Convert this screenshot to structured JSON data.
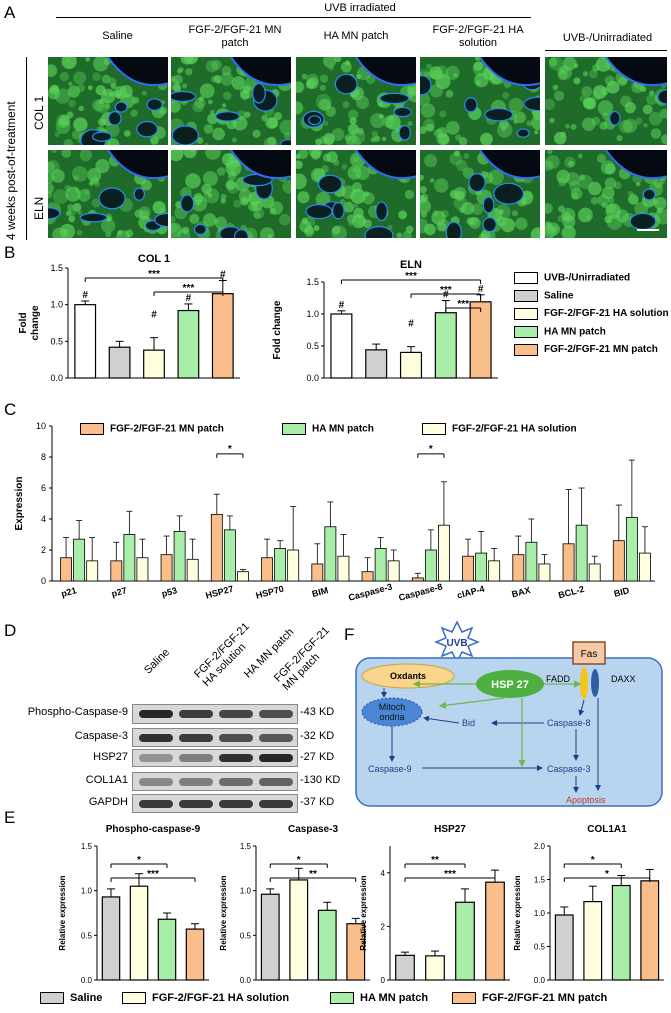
{
  "panels": {
    "A": "A",
    "B": "B",
    "C": "C",
    "D": "D",
    "E": "E",
    "F": "F"
  },
  "colors": {
    "unirradiated": "#ffffff",
    "saline": "#d0d0d0",
    "ha_solution": "#ffffe0",
    "ha_mn": "#a8eea8",
    "fgf_mn": "#f9be8a"
  },
  "panelA": {
    "uvb_irradiated": "UVB irradiated",
    "columns": [
      "Saline",
      "FGF-2/FGF-21 MN patch",
      "HA MN patch",
      "FGF-2/FGF-21 HA solution",
      "UVB-/Unirradiated"
    ],
    "timepoint": "4 weeks post-of-treatment",
    "rows": [
      "COL 1",
      "ELN"
    ]
  },
  "panelB": {
    "legend": [
      "UVB-/Unirradiated",
      "Saline",
      "FGF-2/FGF-21 HA solution",
      "HA MN patch",
      "FGF-2/FGF-21 MN patch"
    ]
  },
  "panelC": {
    "legend": [
      "FGF-2/FGF-21 MN patch",
      "HA MN patch",
      "FGF-2/FGF-21 HA solution"
    ]
  },
  "panelD": {
    "columns": [
      "Saline",
      "FGF-2/FGF-21 HA solution",
      "HA MN patch",
      "FGF-2/FGF-21 MN patch"
    ],
    "proteins": [
      "Phospho-Caspase-9",
      "Caspase-3",
      "HSP27",
      "COL1A1",
      "GAPDH"
    ],
    "sizes": [
      "-43 KD",
      "-32 KD",
      "-27 KD",
      "-130 KD",
      "-37 KD"
    ]
  },
  "panelF": {
    "uvb": "UVB",
    "fas": "Fas",
    "fadd": "FADD",
    "daxx": "DAXX",
    "oxidants": "Oxdants",
    "hsp27": "HSP 27",
    "mito_line1": "Mitoch",
    "mito_line2": "ondria",
    "bid": "Bid",
    "casp8": "Caspase-8",
    "casp9": "Caspase-9",
    "casp3": "Caspase-3",
    "apoptosis": "Apoptosis"
  },
  "panelE": {
    "legend": [
      "Saline",
      "FGF-2/FGF-21 HA solution",
      "HA MN patch",
      "FGF-2/FGF-21 MN patch"
    ]
  },
  "chart_data": [
    {
      "id": "B-col1",
      "type": "bar",
      "title": "COL 1",
      "ylabel": "Fold change",
      "categories": [
        "UVB-/Unirradiated",
        "Saline",
        "FGF-2/FGF-21 HA solution",
        "HA MN patch",
        "FGF-2/FGF-21 MN patch"
      ],
      "values": [
        1.0,
        0.42,
        0.38,
        0.92,
        1.15
      ],
      "errors": [
        0.05,
        0.08,
        0.17,
        0.09,
        0.18
      ],
      "ylim": [
        0,
        1.5
      ],
      "yticks": [
        "0.0",
        "0.5",
        "1.0",
        "1.5"
      ],
      "marks": [
        "#",
        "",
        "",
        "#",
        "#"
      ],
      "sig": [
        {
          "a": 0,
          "b": 4,
          "label": "***"
        },
        {
          "a": 2,
          "b": 4,
          "label": "***"
        }
      ],
      "extra_marks": [
        {
          "at": 2,
          "label": "#"
        }
      ]
    },
    {
      "id": "B-eln",
      "type": "bar",
      "title": "ELN",
      "ylabel": "Fold change",
      "categories": [
        "UVB-/Unirradiated",
        "Saline",
        "FGF-2/FGF-21 HA solution",
        "HA MN patch",
        "FGF-2/FGF-21 MN patch"
      ],
      "values": [
        1.0,
        0.44,
        0.4,
        1.02,
        1.19
      ],
      "errors": [
        0.05,
        0.09,
        0.09,
        0.19,
        0.11
      ],
      "ylim": [
        0,
        1.5
      ],
      "yticks": [
        "0.0",
        "0.5",
        "1.0",
        "1.5"
      ],
      "marks": [
        "#",
        "",
        "",
        "#",
        "#"
      ],
      "sig": [
        {
          "a": 0,
          "b": 4,
          "label": "***"
        },
        {
          "a": 2,
          "b": 4,
          "label": "***"
        },
        {
          "a": 3,
          "b": 4,
          "label": "***"
        }
      ],
      "extra_marks": [
        {
          "at": 2,
          "label": "#"
        }
      ]
    },
    {
      "id": "C",
      "type": "bar",
      "ylabel": "Expression",
      "ylim": [
        0,
        10
      ],
      "yticks": [
        "0",
        "2",
        "4",
        "6",
        "8",
        "10"
      ],
      "categories": [
        "p21",
        "p27",
        "p53",
        "HSP27",
        "HSP70",
        "BIM",
        "Caspase-3",
        "Caspase-8",
        "cIAP-4",
        "BAX",
        "BCL-2",
        "BID"
      ],
      "series": [
        {
          "name": "FGF-2/FGF-21 MN patch",
          "values": [
            1.5,
            1.3,
            1.7,
            4.3,
            1.5,
            1.1,
            0.6,
            0.2,
            1.6,
            1.7,
            2.4,
            2.6
          ],
          "errors": [
            1.3,
            1.2,
            1.2,
            1.3,
            1.2,
            1.3,
            0.9,
            0.3,
            1.1,
            1.2,
            3.5,
            2.3
          ]
        },
        {
          "name": "HA MN patch",
          "values": [
            2.7,
            3.0,
            3.2,
            3.3,
            2.1,
            3.5,
            2.1,
            2.0,
            1.8,
            2.5,
            3.6,
            4.1
          ],
          "errors": [
            1.2,
            1.5,
            1.0,
            0.9,
            0.5,
            1.6,
            0.7,
            1.3,
            1.4,
            1.5,
            2.4,
            3.7
          ]
        },
        {
          "name": "FGF-2/FGF-21 HA solution",
          "values": [
            1.3,
            1.5,
            1.4,
            0.6,
            2.0,
            1.6,
            1.3,
            3.6,
            1.3,
            1.1,
            1.1,
            1.8
          ]
        }
      ],
      "sig": [
        {
          "cat": 3,
          "label": "*"
        },
        {
          "cat": 7,
          "label": "*"
        }
      ]
    },
    {
      "id": "E-pcasp9",
      "type": "bar",
      "title": "Phospho-caspase-9",
      "ylabel": "Relative expression",
      "categories": [
        "Saline",
        "FGF-2/FGF-21 HA solution",
        "HA MN patch",
        "FGF-2/FGF-21 MN patch"
      ],
      "values": [
        0.93,
        1.05,
        0.68,
        0.57
      ],
      "errors": [
        0.09,
        0.14,
        0.07,
        0.06
      ],
      "ylim": [
        0,
        1.5
      ],
      "yticks": [
        "0.0",
        "0.5",
        "1.0",
        "1.5"
      ],
      "sig": [
        {
          "a": 0,
          "b": 2,
          "label": "*"
        },
        {
          "a": 0,
          "b": 3,
          "label": "***"
        }
      ]
    },
    {
      "id": "E-casp3",
      "type": "bar",
      "title": "Caspase-3",
      "ylabel": "Relative expression",
      "categories": [
        "Saline",
        "FGF-2/FGF-21 HA solution",
        "HA MN patch",
        "FGF-2/FGF-21 MN patch"
      ],
      "values": [
        0.96,
        1.12,
        0.78,
        0.63
      ],
      "errors": [
        0.06,
        0.13,
        0.09,
        0.06
      ],
      "ylim": [
        0,
        1.5
      ],
      "yticks": [
        "0.0",
        "0.5",
        "1.0",
        "1.5"
      ],
      "sig": [
        {
          "a": 0,
          "b": 2,
          "label": "*"
        },
        {
          "a": 0,
          "b": 3,
          "label": "**"
        }
      ]
    },
    {
      "id": "E-hsp27",
      "type": "bar",
      "title": "HSP27",
      "ylabel": "Relative expression",
      "categories": [
        "Saline",
        "FGF-2/FGF-21 HA solution",
        "HA MN patch",
        "FGF-2/FGF-21 MN patch"
      ],
      "values": [
        0.92,
        0.9,
        2.9,
        3.65
      ],
      "errors": [
        0.12,
        0.18,
        0.5,
        0.45
      ],
      "ylim": [
        0,
        5
      ],
      "yticks": [
        "0",
        "2",
        "4"
      ],
      "sig": [
        {
          "a": 0,
          "b": 2,
          "label": "**"
        },
        {
          "a": 0,
          "b": 3,
          "label": "***"
        }
      ]
    },
    {
      "id": "E-col1a1",
      "type": "bar",
      "title": "COL1A1",
      "ylabel": "Relative expression",
      "categories": [
        "Saline",
        "FGF-2/FGF-21 HA solution",
        "HA MN patch",
        "FGF-2/FGF-21 MN patch"
      ],
      "values": [
        0.97,
        1.17,
        1.41,
        1.48
      ],
      "errors": [
        0.12,
        0.23,
        0.15,
        0.17
      ],
      "ylim": [
        0,
        2
      ],
      "yticks": [
        "0.0",
        "0.5",
        "1.0",
        "1.5",
        "2.0"
      ],
      "sig": [
        {
          "a": 0,
          "b": 2,
          "label": "*"
        },
        {
          "a": 0,
          "b": 3,
          "label": "*"
        }
      ]
    }
  ]
}
